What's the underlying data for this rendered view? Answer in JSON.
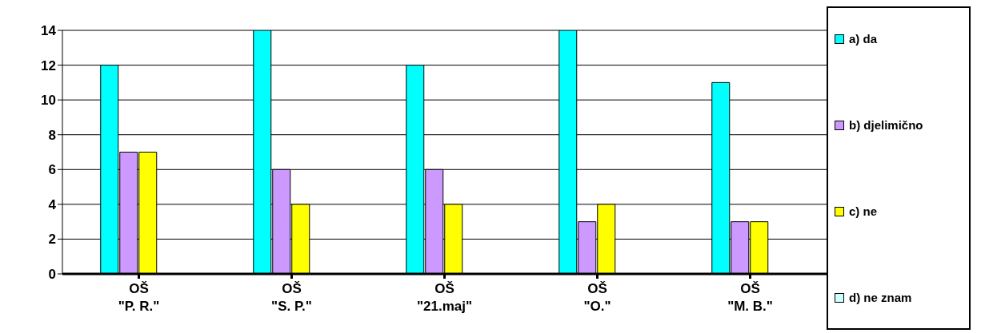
{
  "chart_data": {
    "type": "bar",
    "categories": [
      "OŠ\n\"P. R.\"",
      "OŠ\n\"S. P.\"",
      "OŠ\n\"21.maj\"",
      "OŠ\n\"O.\"",
      "OŠ\n\"M. B.\""
    ],
    "series": [
      {
        "name": "a) da",
        "color": "#00ffff",
        "values": [
          12,
          14,
          12,
          14,
          11
        ]
      },
      {
        "name": "b) djelimično",
        "color": "#cc99ff",
        "values": [
          7,
          6,
          6,
          3,
          3
        ]
      },
      {
        "name": "c) ne",
        "color": "#ffff00",
        "values": [
          7,
          4,
          4,
          4,
          3
        ]
      },
      {
        "name": "d) ne znam",
        "color": "#ccffff",
        "values": [
          0,
          0,
          0,
          0,
          0
        ]
      }
    ],
    "ylim": [
      0,
      14
    ],
    "yticks": [
      0,
      2,
      4,
      6,
      8,
      10,
      12,
      14
    ],
    "grid": "y",
    "legend": "right"
  }
}
